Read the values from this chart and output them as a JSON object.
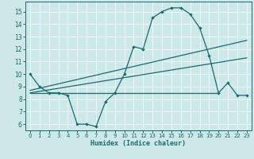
{
  "xlabel": "Humidex (Indice chaleur)",
  "ylabel": "",
  "bg_color": "#cce8e8",
  "grid_color": "#e8f4f4",
  "line_color": "#1a6b6b",
  "xlim": [
    -0.5,
    23.5
  ],
  "ylim": [
    5.5,
    15.8
  ],
  "yticks": [
    6,
    7,
    8,
    9,
    10,
    11,
    12,
    13,
    14,
    15
  ],
  "xticks": [
    0,
    1,
    2,
    3,
    4,
    5,
    6,
    7,
    8,
    9,
    10,
    11,
    12,
    13,
    14,
    15,
    16,
    17,
    18,
    19,
    20,
    21,
    22,
    23
  ],
  "line1_x": [
    0,
    1,
    2,
    3,
    4,
    5,
    6,
    7,
    8,
    9,
    10,
    11,
    12,
    13,
    14,
    15,
    16,
    17,
    18,
    19,
    20,
    21,
    22,
    23
  ],
  "line1_y": [
    10.0,
    9.0,
    8.5,
    8.5,
    8.3,
    6.0,
    6.0,
    5.8,
    7.8,
    8.5,
    10.0,
    12.2,
    12.0,
    14.5,
    15.0,
    15.3,
    15.3,
    14.8,
    13.7,
    11.5,
    8.5,
    9.3,
    8.3,
    8.3
  ],
  "line2_x": [
    0,
    23
  ],
  "line2_y": [
    8.7,
    12.7
  ],
  "line3_x": [
    0,
    23
  ],
  "line3_y": [
    8.5,
    11.3
  ],
  "line4_x": [
    0,
    20
  ],
  "line4_y": [
    8.5,
    8.5
  ]
}
